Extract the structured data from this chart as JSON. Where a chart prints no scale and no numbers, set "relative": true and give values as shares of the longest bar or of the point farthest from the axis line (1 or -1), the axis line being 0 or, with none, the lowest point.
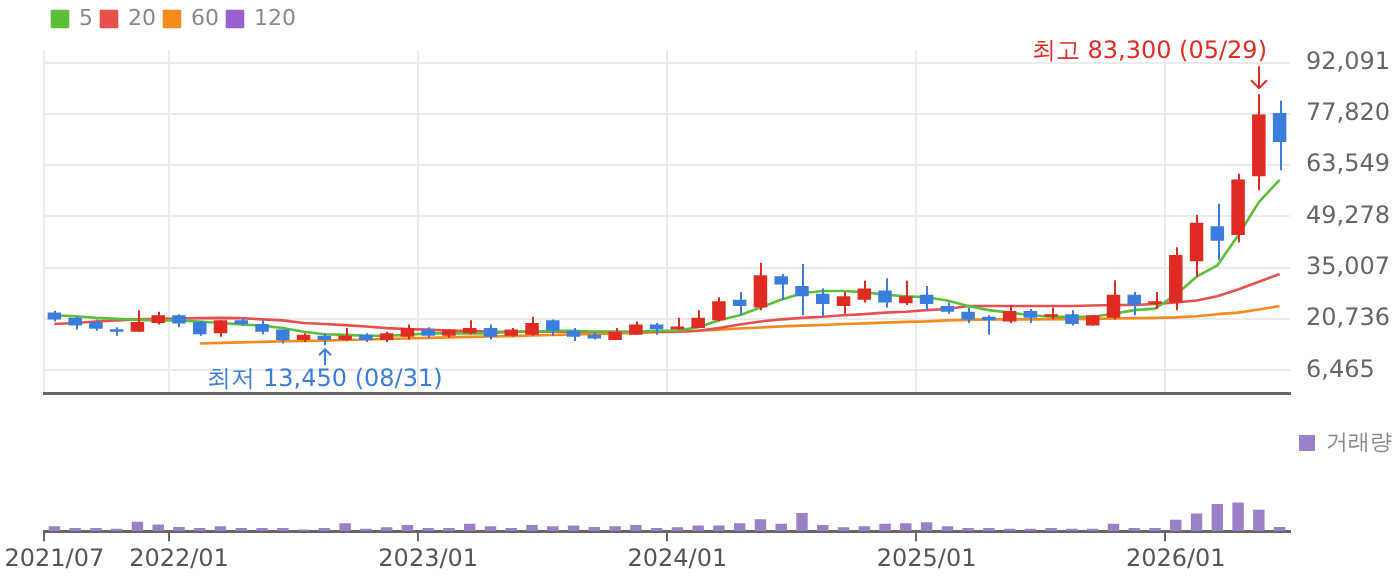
{
  "chart_data": [
    {
      "type": "candlestick",
      "categories": [
        "2021/07",
        null,
        null,
        null,
        null,
        null,
        "2022/01",
        null,
        null,
        null,
        null,
        null,
        null,
        null,
        null,
        null,
        null,
        null,
        "2023/01",
        null,
        null,
        null,
        null,
        null,
        null,
        null,
        null,
        null,
        null,
        null,
        "2024/01",
        null,
        null,
        null,
        null,
        null,
        null,
        null,
        null,
        null,
        null,
        null,
        "2025/01",
        null,
        null,
        null,
        null,
        null,
        null,
        null,
        null,
        null,
        null,
        null,
        "2026/01",
        null,
        null,
        null,
        null,
        null
      ],
      "ohlc": [
        [
          22530,
          23085,
          20080,
          20640
        ],
        [
          21070,
          21370,
          17800,
          18920
        ],
        [
          19950,
          20636,
          17500,
          18060
        ],
        [
          17930,
          18490,
          16090,
          17200
        ],
        [
          17200,
          23220,
          17200,
          19950
        ],
        [
          19650,
          22780,
          19220,
          21800
        ],
        [
          21800,
          22100,
          18490,
          19530
        ],
        [
          19950,
          20210,
          16090,
          16520
        ],
        [
          16780,
          20380,
          15790,
          20380
        ],
        [
          20380,
          21070,
          18920,
          19350
        ],
        [
          19350,
          20380,
          16520,
          17200
        ],
        [
          17800,
          17800,
          13940,
          14930
        ],
        [
          14930,
          16770,
          14370,
          16340
        ],
        [
          16090,
          16770,
          13450,
          14930
        ],
        [
          14930,
          18230,
          14630,
          16090
        ],
        [
          16340,
          16770,
          14370,
          14930
        ],
        [
          14930,
          17200,
          14370,
          16770
        ],
        [
          15790,
          19220,
          15060,
          18230
        ],
        [
          17930,
          18490,
          15520,
          16090
        ],
        [
          16090,
          17930,
          15520,
          17800
        ],
        [
          16770,
          20380,
          16520,
          18230
        ],
        [
          18230,
          19220,
          15060,
          15790
        ],
        [
          16090,
          18230,
          15790,
          17800
        ],
        [
          16340,
          21370,
          16090,
          19650
        ],
        [
          20380,
          20636,
          16090,
          17500
        ],
        [
          17500,
          18230,
          14630,
          15790
        ],
        [
          16340,
          17070,
          15060,
          15360
        ],
        [
          14930,
          18230,
          14930,
          17200
        ],
        [
          16340,
          20080,
          16340,
          19220
        ],
        [
          19220,
          19650,
          16340,
          17930
        ],
        [
          17800,
          21070,
          17800,
          18660
        ],
        [
          18230,
          23220,
          18230,
          21070
        ],
        [
          20380,
          26820,
          20080,
          25660
        ],
        [
          26090,
          28240,
          21800,
          24380
        ],
        [
          23940,
          36400,
          23220,
          32960
        ],
        [
          32660,
          33260,
          26090,
          30380
        ],
        [
          29960,
          36090,
          21800,
          27080
        ],
        [
          27810,
          29220,
          21500,
          24930
        ],
        [
          24380,
          28240,
          22230,
          27080
        ],
        [
          26090,
          31370,
          25360,
          29220
        ],
        [
          28670,
          32100,
          23940,
          25360
        ],
        [
          25110,
          31370,
          24670,
          27080
        ],
        [
          27500,
          29960,
          23220,
          24930
        ],
        [
          24380,
          25360,
          22230,
          22790
        ],
        [
          22790,
          23940,
          19650,
          20636
        ],
        [
          21370,
          21800,
          16340,
          20380
        ],
        [
          20080,
          24670,
          19650,
          22960
        ],
        [
          22960,
          23520,
          19650,
          21070
        ],
        [
          21370,
          23940,
          20636,
          22100
        ],
        [
          22100,
          23220,
          18920,
          19350
        ],
        [
          18920,
          21800,
          18920,
          21800
        ],
        [
          21070,
          31550,
          20640,
          27510
        ],
        [
          27510,
          28240,
          21800,
          24670
        ],
        [
          24930,
          28240,
          23520,
          25660
        ],
        [
          25360,
          40690,
          23220,
          38550
        ],
        [
          36830,
          49710,
          32530,
          47560
        ],
        [
          46570,
          52840,
          37260,
          42540
        ],
        [
          44130,
          61170,
          42110,
          59590
        ],
        [
          60440,
          83300,
          56580,
          77620
        ],
        [
          78050,
          81480,
          62160,
          70020
        ]
      ],
      "colors": [
        "#3b7ddd",
        "#3b7ddd",
        "#3b7ddd",
        "#3b7ddd",
        "#e02b22",
        "#e02b22",
        "#3b7ddd",
        "#3b7ddd",
        "#e02b22",
        "#3b7ddd",
        "#3b7ddd",
        "#3b7ddd",
        "#e02b22",
        "#3b7ddd",
        "#e02b22",
        "#3b7ddd",
        "#e02b22",
        "#e02b22",
        "#3b7ddd",
        "#e02b22",
        "#e02b22",
        "#3b7ddd",
        "#e02b22",
        "#e02b22",
        "#3b7ddd",
        "#3b7ddd",
        "#3b7ddd",
        "#e02b22",
        "#e02b22",
        "#3b7ddd",
        "#e02b22",
        "#e02b22",
        "#e02b22",
        "#3b7ddd",
        "#e02b22",
        "#3b7ddd",
        "#3b7ddd",
        "#3b7ddd",
        "#e02b22",
        "#e02b22",
        "#3b7ddd",
        "#e02b22",
        "#3b7ddd",
        "#3b7ddd",
        "#3b7ddd",
        "#3b7ddd",
        "#e02b22",
        "#3b7ddd",
        "#e02b22",
        "#3b7ddd",
        "#e02b22",
        "#e02b22",
        "#3b7ddd",
        "#e02b22",
        "#e02b22",
        "#e02b22",
        "#3b7ddd",
        "#e02b22",
        "#e02b22",
        "#3b7ddd"
      ],
      "series": [
        {
          "name": "5",
          "type": "line",
          "color": "#5cbf3a",
          "values": [
            21800,
            21500,
            21070,
            20800,
            20500,
            20380,
            20380,
            20080,
            19650,
            19220,
            18920,
            18230,
            17200,
            16520,
            16340,
            16090,
            16090,
            16340,
            16770,
            16770,
            16770,
            16770,
            17200,
            17200,
            17500,
            17500,
            17200,
            17200,
            17200,
            17500,
            17500,
            18490,
            20380,
            21800,
            23940,
            26090,
            27930,
            28540,
            28540,
            28240,
            27510,
            27080,
            26820,
            25900,
            24380,
            23220,
            22530,
            21800,
            21370,
            21370,
            21370,
            22230,
            23220,
            23650,
            27510,
            32530,
            35660,
            43990,
            53270,
            59460
          ]
        },
        {
          "name": "20",
          "type": "line",
          "color": "#e85050",
          "values": [
            19350,
            19650,
            20080,
            20380,
            20640,
            20800,
            20900,
            21000,
            21070,
            21000,
            20640,
            20380,
            19650,
            19350,
            19050,
            18660,
            18230,
            17930,
            17800,
            17500,
            17500,
            17200,
            17200,
            17200,
            17200,
            17200,
            17200,
            17200,
            17200,
            17200,
            17200,
            17500,
            18230,
            19220,
            20080,
            20640,
            21070,
            21370,
            21800,
            22100,
            22530,
            22790,
            23220,
            23520,
            24380,
            24380,
            24380,
            24380,
            24380,
            24380,
            24500,
            24670,
            24670,
            24930,
            25360,
            25900,
            27080,
            28960,
            31100,
            33260
          ]
        },
        {
          "name": "60",
          "type": "line",
          "color": "#f58a1f",
          "values": [
            null,
            null,
            null,
            null,
            null,
            null,
            null,
            13940,
            14100,
            14250,
            14400,
            14550,
            14630,
            14750,
            14900,
            15050,
            15200,
            15350,
            15500,
            15650,
            15790,
            15900,
            16000,
            16150,
            16300,
            16450,
            16600,
            16750,
            16900,
            17070,
            17200,
            17500,
            17800,
            18100,
            18400,
            18700,
            18920,
            19100,
            19350,
            19550,
            19750,
            19950,
            20100,
            20380,
            20500,
            20640,
            20640,
            20640,
            20700,
            20700,
            20800,
            20900,
            21000,
            21070,
            21200,
            21500,
            22100,
            22530,
            23400,
            24380
          ]
        },
        {
          "name": "120",
          "type": "line",
          "color": "#9b5fcf",
          "values": [
            null,
            null,
            null,
            null,
            null,
            null,
            null,
            null,
            null,
            null,
            null,
            null,
            null,
            null,
            null,
            null,
            null,
            null,
            null,
            null,
            null,
            null,
            null,
            null,
            null,
            null,
            null,
            null,
            null,
            null,
            null,
            null,
            null,
            null,
            null,
            null,
            null,
            null,
            null,
            null,
            null,
            null,
            null,
            null,
            null,
            null,
            null,
            null,
            null,
            null,
            null,
            null,
            null,
            null,
            null,
            null,
            null,
            null,
            null,
            null
          ]
        }
      ],
      "ylim": [
        0,
        95600
      ],
      "yticks": [
        {
          "value": 6465,
          "label": "6,465"
        },
        {
          "value": 20736,
          "label": "20,736"
        },
        {
          "value": 35007,
          "label": "35,007"
        },
        {
          "value": 49278,
          "label": "49,278"
        },
        {
          "value": 63549,
          "label": "63,549"
        },
        {
          "value": 77820,
          "label": "77,820"
        },
        {
          "value": 92091,
          "label": "92,091"
        }
      ],
      "grid": true,
      "legend": "top left",
      "tick_labels": "y",
      "marker": "none",
      "annotations": [
        "최고 83,300 (05/29)",
        "최저 13,450 (08/31)"
      ]
    },
    {
      "type": "bar",
      "categories": [
        "2021/07",
        null,
        null,
        null,
        null,
        null,
        "2022/01",
        null,
        null,
        null,
        null,
        null,
        null,
        null,
        null,
        null,
        null,
        null,
        "2023/01",
        null,
        null,
        null,
        null,
        null,
        null,
        null,
        null,
        null,
        null,
        null,
        "2024/01",
        null,
        null,
        null,
        null,
        null,
        null,
        null,
        null,
        null,
        null,
        null,
        "2025/01",
        null,
        null,
        null,
        null,
        null,
        null,
        null,
        null,
        null,
        null,
        null,
        "2026/01",
        null,
        null,
        null,
        null,
        null
      ],
      "series": [
        {
          "name": "거래량",
          "color": "#9b80c8",
          "values": [
            0.17,
            0.11,
            0.11,
            0.09,
            0.33,
            0.23,
            0.15,
            0.11,
            0.17,
            0.11,
            0.11,
            0.11,
            0.06,
            0.11,
            0.28,
            0.09,
            0.14,
            0.22,
            0.11,
            0.11,
            0.26,
            0.17,
            0.11,
            0.22,
            0.17,
            0.2,
            0.15,
            0.17,
            0.22,
            0.11,
            0.14,
            0.2,
            0.2,
            0.28,
            0.42,
            0.26,
            0.64,
            0.22,
            0.14,
            0.17,
            0.26,
            0.28,
            0.31,
            0.17,
            0.11,
            0.11,
            0.09,
            0.09,
            0.11,
            0.09,
            0.09,
            0.26,
            0.11,
            0.11,
            0.4,
            0.62,
            0.95,
            1,
            0.75,
            0.15
          ]
        }
      ],
      "relative": true,
      "legend": "top right",
      "tick_labels": "x"
    }
  ]
}
